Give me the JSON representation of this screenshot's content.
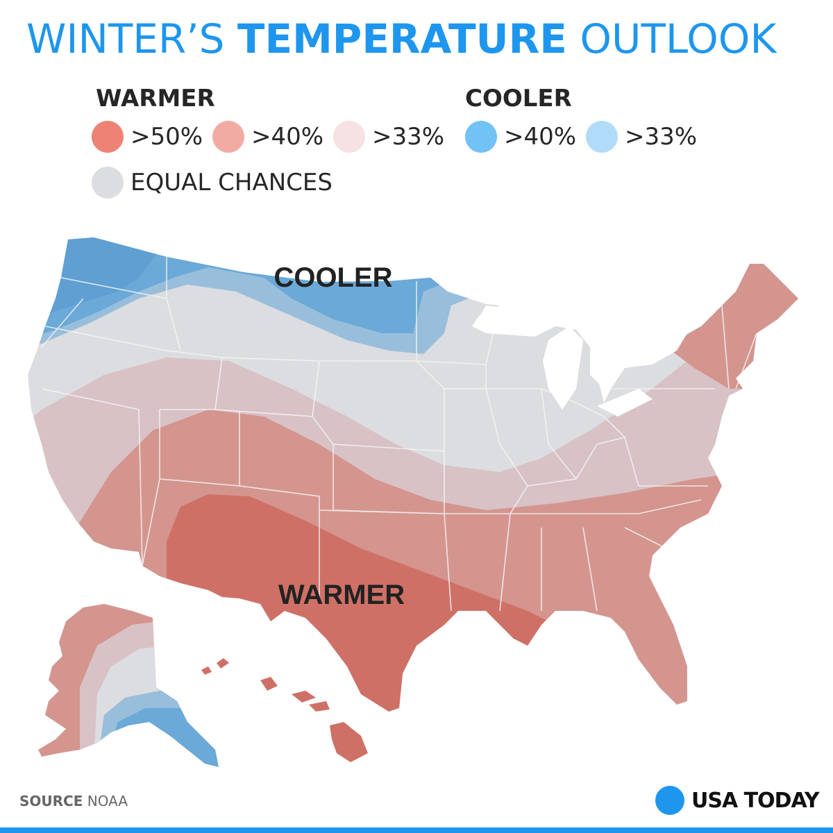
{
  "title": {
    "part1": "WINTER’S ",
    "part2": "TEMPERATURE",
    "part3": " OUTLOOK"
  },
  "legend": {
    "warmer_heading": "WARMER",
    "cooler_heading": "COOLER",
    "warmer": [
      {
        "label": ">50%",
        "color": "#ee8275"
      },
      {
        "label": ">40%",
        "color": "#f2aba3"
      },
      {
        "label": ">33%",
        "color": "#f6e2e2"
      }
    ],
    "cooler": [
      {
        "label": ">40%",
        "color": "#73c2f6"
      },
      {
        "label": ">33%",
        "color": "#b1dcf9"
      }
    ],
    "equal": {
      "label": "EQUAL CHANCES",
      "color": "#dcdde0"
    }
  },
  "map": {
    "cooler_label": "COOLER",
    "warmer_label": "WARMER",
    "colors": {
      "equal": "#dcdde0",
      "warm33": "#d8c2c5",
      "warm40": "#d4958f",
      "warm50": "#cf7066",
      "cool33": "#98bedb",
      "cool40": "#6aa9d8",
      "state_lines": "#f4f4f4"
    }
  },
  "footer": {
    "source_label": "SOURCE",
    "source_value": "NOAA",
    "brand": "USA TODAY"
  }
}
